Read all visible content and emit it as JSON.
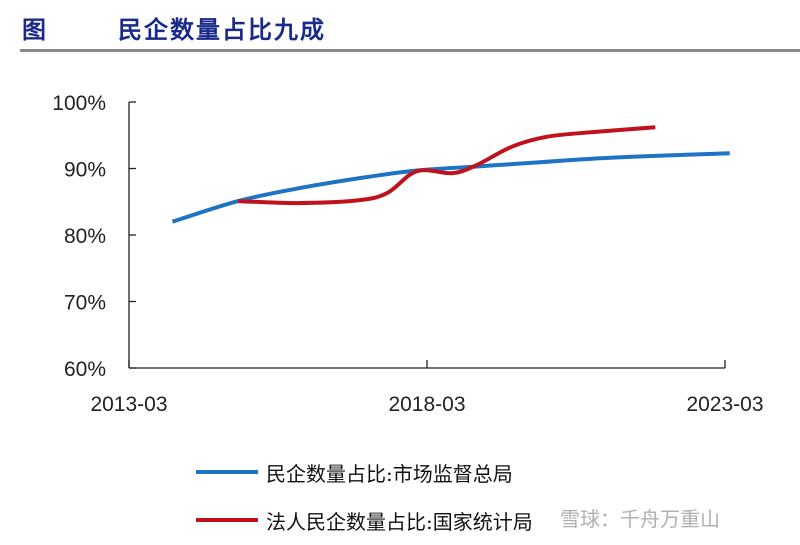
{
  "header": {
    "figure_label": "图",
    "title": "民企数量占比九成"
  },
  "colors": {
    "title": "#1a2a8a",
    "series_blue": "#1f73c4",
    "series_red": "#c0121e",
    "axis": "#222222"
  },
  "legend": [
    {
      "label": "民企数量占比:市场监督总局",
      "color": "#1f73c4"
    },
    {
      "label": "法人民企数量占比:国家统计局",
      "color": "#c0121e"
    }
  ],
  "watermark": "雪球：千舟万重山",
  "chart_data": {
    "type": "line",
    "title": "民企数量占比九成",
    "xlabel": "",
    "ylabel": "",
    "ylim": [
      0.6,
      1.0
    ],
    "yticks": [
      "60%",
      "70%",
      "80%",
      "90%",
      "100%"
    ],
    "xticks": [
      "2013-03",
      "2018-03",
      "2023-03"
    ],
    "grid": false,
    "legend_position": "bottom",
    "series": [
      {
        "name": "民企数量占比:市场监督总局",
        "x": [
          2013.9,
          2015.0,
          2016.0,
          2017.0,
          2018.0,
          2019.0,
          2020.0,
          2021.0,
          2022.0,
          2023.25
        ],
        "values": [
          0.82,
          0.851,
          0.87,
          0.885,
          0.897,
          0.903,
          0.909,
          0.915,
          0.919,
          0.923
        ]
      },
      {
        "name": "法人民企数量占比:国家统计局",
        "x": [
          2015.0,
          2016.0,
          2017.0,
          2017.5,
          2018.0,
          2018.6,
          2019.0,
          2019.6,
          2020.2,
          2021.0,
          2022.0
        ],
        "values": [
          0.851,
          0.848,
          0.852,
          0.863,
          0.896,
          0.893,
          0.905,
          0.933,
          0.948,
          0.955,
          0.962
        ]
      }
    ]
  }
}
